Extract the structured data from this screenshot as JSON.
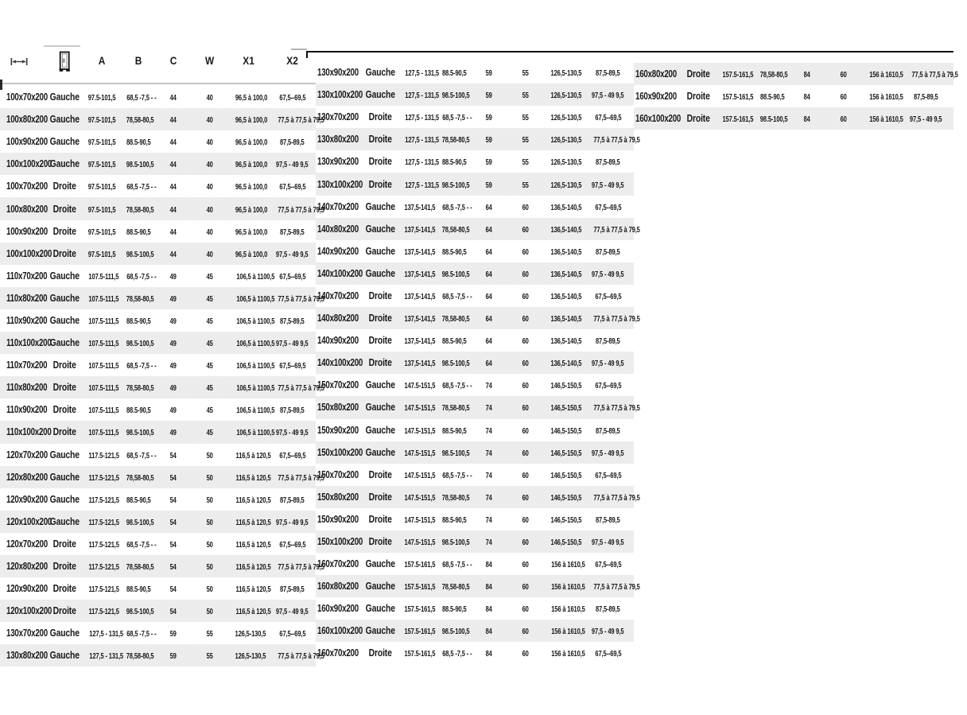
{
  "header": {
    "icons": [
      "width-arrow-icon",
      "door-icon"
    ],
    "labels": [
      "A",
      "B",
      "C",
      "W",
      "X1",
      "X2"
    ]
  },
  "colors": {
    "text": "#1a1a1a",
    "stripe": "#e9e9e9",
    "rule_black": "#0e0e0e",
    "rule_gray": "#c6c6c6"
  },
  "tables": [
    {
      "id": "left",
      "stripe_offset": 0,
      "rows": [
        [
          "100x70x200",
          "Gauche",
          "97.5-101,5",
          "68,5 -7,5 - -",
          "44",
          "40",
          "96,5 à 100,0",
          "67,5--69,5"
        ],
        [
          "100x80x200",
          "Gauche",
          "97.5-101,5",
          "78,58-80,5",
          "44",
          "40",
          "96,5 à 100,0",
          "77,5 à 77,5 à 79,5"
        ],
        [
          "100x90x200",
          "Gauche",
          "97.5-101,5",
          "88.5-90,5",
          "44",
          "40",
          "96,5 à 100,0",
          "87,5-89,5"
        ],
        [
          "100x100x200",
          "Gauche",
          "97.5-101,5",
          "98.5-100,5",
          "44",
          "40",
          "96,5 à 100,0",
          "97,5 - 49 9,5"
        ],
        [
          "100x70x200",
          "Droite",
          "97.5-101,5",
          "68,5 -7,5 - -",
          "44",
          "40",
          "96,5 à 100,0",
          "67,5--69,5"
        ],
        [
          "100x80x200",
          "Droite",
          "97.5-101,5",
          "78,58-80,5",
          "44",
          "40",
          "96,5 à 100,0",
          "77,5 à 77,5 à 79,5"
        ],
        [
          "100x90x200",
          "Droite",
          "97.5-101,5",
          "88.5-90,5",
          "44",
          "40",
          "96,5 à 100,0",
          "87,5-89,5"
        ],
        [
          "100x100x200",
          "Droite",
          "97.5-101,5",
          "98.5-100,5",
          "44",
          "40",
          "96,5 à 100,0",
          "97,5 - 49 9,5"
        ],
        [
          "110x70x200",
          "Gauche",
          "107.5-111,5",
          "68,5 -7,5 - -",
          "49",
          "45",
          "106,5 à 1100,5",
          "67,5--69,5"
        ],
        [
          "110x80x200",
          "Gauche",
          "107.5-111,5",
          "78,58-80,5",
          "49",
          "45",
          "106,5 à 1100,5",
          "77,5 à 77,5 à 79,5"
        ],
        [
          "110x90x200",
          "Gauche",
          "107.5-111,5",
          "88.5-90,5",
          "49",
          "45",
          "106,5 à 1100,5",
          "87,5-89,5"
        ],
        [
          "110x100x200",
          "Gauche",
          "107.5-111,5",
          "98.5-100,5",
          "49",
          "45",
          "106,5 à 1100,5",
          "97,5 - 49 9,5"
        ],
        [
          "110x70x200",
          "Droite",
          "107.5-111,5",
          "68,5 -7,5 - -",
          "49",
          "45",
          "106,5 à 1100,5",
          "67,5--69,5"
        ],
        [
          "110x80x200",
          "Droite",
          "107.5-111,5",
          "78,58-80,5",
          "49",
          "45",
          "106,5 à 1100,5",
          "77,5 à 77,5 à 79,5"
        ],
        [
          "110x90x200",
          "Droite",
          "107.5-111,5",
          "88.5-90,5",
          "49",
          "45",
          "106,5 à 1100,5",
          "87,5-89,5"
        ],
        [
          "110x100x200",
          "Droite",
          "107.5-111,5",
          "98.5-100,5",
          "49",
          "45",
          "106,5 à 1100,5",
          "97,5 - 49 9,5"
        ],
        [
          "120x70x200",
          "Gauche",
          "117.5-121,5",
          "68,5 -7,5 - -",
          "54",
          "50",
          "116,5 à 120,5",
          "67,5--69,5"
        ],
        [
          "120x80x200",
          "Gauche",
          "117.5-121,5",
          "78,58-80,5",
          "54",
          "50",
          "116,5 à 120,5",
          "77,5 à 77,5 à 79,5"
        ],
        [
          "120x90x200",
          "Gauche",
          "117.5-121,5",
          "88.5-90,5",
          "54",
          "50",
          "116,5 à 120,5",
          "87,5-89,5"
        ],
        [
          "120x100x200",
          "Gauche",
          "117.5-121,5",
          "98.5-100,5",
          "54",
          "50",
          "116,5 à 120,5",
          "97,5 - 49 9,5"
        ],
        [
          "120x70x200",
          "Droite",
          "117.5-121,5",
          "68,5 -7,5 - -",
          "54",
          "50",
          "116,5 à 120,5",
          "67,5--69,5"
        ],
        [
          "120x80x200",
          "Droite",
          "117.5-121,5",
          "78,58-80,5",
          "54",
          "50",
          "116,5 à 120,5",
          "77,5 à 77,5 à 79,5"
        ],
        [
          "120x90x200",
          "Droite",
          "117.5-121,5",
          "88.5-90,5",
          "54",
          "50",
          "116,5 à 120,5",
          "87,5-89,5"
        ],
        [
          "120x100x200",
          "Droite",
          "117.5-121,5",
          "98.5-100,5",
          "54",
          "50",
          "116,5 à 120,5",
          "97,5 - 49 9,5"
        ],
        [
          "130x70x200",
          "Gauche",
          "127,5 - 131,5",
          "68,5 -7,5 - -",
          "59",
          "55",
          "126,5-130,5",
          "67,5--69,5"
        ],
        [
          "130x80x200",
          "Gauche",
          "127,5 - 131,5",
          "78,58-80,5",
          "59",
          "55",
          "126,5-130,5",
          "77,5 à 77,5 à 79,5"
        ]
      ]
    },
    {
      "id": "middle",
      "stripe_offset": 0,
      "rows": [
        [
          "130x90x200",
          "Gauche",
          "127,5 - 131,5",
          "88.5-90,5",
          "59",
          "55",
          "126,5-130,5",
          "87,5-89,5"
        ],
        [
          "130x100x200",
          "Gauche",
          "127,5 - 131,5",
          "98.5-100,5",
          "59",
          "55",
          "126,5-130,5",
          "97,5 - 49 9,5"
        ],
        [
          "130x70x200",
          "Droite",
          "127,5 - 131,5",
          "68,5 -7,5 - -",
          "59",
          "55",
          "126,5-130,5",
          "67,5--69,5"
        ],
        [
          "130x80x200",
          "Droite",
          "127,5 - 131,5",
          "78,58-80,5",
          "59",
          "55",
          "126,5-130,5",
          "77,5 à 77,5 à 79,5"
        ],
        [
          "130x90x200",
          "Droite",
          "127,5 - 131,5",
          "88.5-90,5",
          "59",
          "55",
          "126,5-130,5",
          "87,5-89,5"
        ],
        [
          "130x100x200",
          "Droite",
          "127,5 - 131,5",
          "98.5-100,5",
          "59",
          "55",
          "126,5-130,5",
          "97,5 - 49 9,5"
        ],
        [
          "140x70x200",
          "Gauche",
          "137,5-141,5",
          "68,5 -7,5 - -",
          "64",
          "60",
          "136,5-140,5",
          "67,5--69,5"
        ],
        [
          "140x80x200",
          "Gauche",
          "137,5-141,5",
          "78,58-80,5",
          "64",
          "60",
          "136,5-140,5",
          "77,5 à 77,5 à 79,5"
        ],
        [
          "140x90x200",
          "Gauche",
          "137,5-141,5",
          "88.5-90,5",
          "64",
          "60",
          "136,5-140,5",
          "87,5-89,5"
        ],
        [
          "140x100x200",
          "Gauche",
          "137,5-141,5",
          "98.5-100,5",
          "64",
          "60",
          "136,5-140,5",
          "97,5 - 49 9,5"
        ],
        [
          "140x70x200",
          "Droite",
          "137,5-141,5",
          "68,5 -7,5 - -",
          "64",
          "60",
          "136,5-140,5",
          "67,5--69,5"
        ],
        [
          "140x80x200",
          "Droite",
          "137,5-141,5",
          "78,58-80,5",
          "64",
          "60",
          "136,5-140,5",
          "77,5 à 77,5 à 79,5"
        ],
        [
          "140x90x200",
          "Droite",
          "137,5-141,5",
          "88.5-90,5",
          "64",
          "60",
          "136,5-140,5",
          "87,5-89,5"
        ],
        [
          "140x100x200",
          "Droite",
          "137,5-141,5",
          "98.5-100,5",
          "64",
          "60",
          "136,5-140,5",
          "97,5 - 49 9,5"
        ],
        [
          "150x70x200",
          "Gauche",
          "147.5-151,5",
          "68,5 -7,5 - -",
          "74",
          "60",
          "146,5-150,5",
          "67,5--69,5"
        ],
        [
          "150x80x200",
          "Gauche",
          "147.5-151,5",
          "78,58-80,5",
          "74",
          "60",
          "146,5-150,5",
          "77,5 à 77,5 à 79,5"
        ],
        [
          "150x90x200",
          "Gauche",
          "147.5-151,5",
          "88.5-90,5",
          "74",
          "60",
          "146,5-150,5",
          "87,5-89,5"
        ],
        [
          "150x100x200",
          "Gauche",
          "147.5-151,5",
          "98.5-100,5",
          "74",
          "60",
          "146,5-150,5",
          "97,5 - 49 9,5"
        ],
        [
          "150x70x200",
          "Droite",
          "147.5-151,5",
          "68,5 -7,5 - -",
          "74",
          "60",
          "146,5-150,5",
          "67,5--69,5"
        ],
        [
          "150x80x200",
          "Droite",
          "147.5-151,5",
          "78,58-80,5",
          "74",
          "60",
          "146,5-150,5",
          "77,5 à 77,5 à 79,5"
        ],
        [
          "150x90x200",
          "Droite",
          "147.5-151,5",
          "88.5-90,5",
          "74",
          "60",
          "146,5-150,5",
          "87,5-89,5"
        ],
        [
          "150x100x200",
          "Droite",
          "147.5-151,5",
          "98.5-100,5",
          "74",
          "60",
          "146,5-150,5",
          "97,5 - 49 9,5"
        ],
        [
          "160x70x200",
          "Gauche",
          "157.5-161,5",
          "68,5 -7,5 - -",
          "84",
          "60",
          "156 à 1610,5",
          "67,5--69,5"
        ],
        [
          "160x80x200",
          "Gauche",
          "157.5-161,5",
          "78,58-80,5",
          "84",
          "60",
          "156 à 1610,5",
          "77,5 à 77,5 à 79,5"
        ],
        [
          "160x90x200",
          "Gauche",
          "157.5-161,5",
          "88.5-90,5",
          "84",
          "60",
          "156 à 1610,5",
          "87,5-89,5"
        ],
        [
          "160x100x200",
          "Gauche",
          "157.5-161,5",
          "98.5-100,5",
          "84",
          "60",
          "156 à 1610,5",
          "97,5 - 49 9,5"
        ],
        [
          "160x70x200",
          "Droite",
          "157.5-161,5",
          "68,5 -7,5 - -",
          "84",
          "60",
          "156 à 1610,5",
          "67,5--69,5"
        ]
      ]
    },
    {
      "id": "right",
      "stripe_offset": 1,
      "rows": [
        [
          "160x80x200",
          "Droite",
          "157.5-161,5",
          "78,58-80,5",
          "84",
          "60",
          "156 à 1610,5",
          "77,5 à 77,5 à 79,5"
        ],
        [
          "160x90x200",
          "Droite",
          "157.5-161,5",
          "88.5-90,5",
          "84",
          "60",
          "156 à 1610,5",
          "87,5-89,5"
        ],
        [
          "160x100x200",
          "Droite",
          "157.5-161,5",
          "98.5-100,5",
          "84",
          "60",
          "156 à 1610,5",
          "97,5 - 49 9,5"
        ]
      ]
    }
  ]
}
